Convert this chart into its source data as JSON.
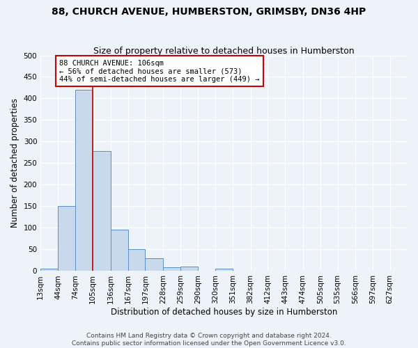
{
  "title": "88, CHURCH AVENUE, HUMBERSTON, GRIMSBY, DN36 4HP",
  "subtitle": "Size of property relative to detached houses in Humberston",
  "xlabel": "Distribution of detached houses by size in Humberston",
  "ylabel": "Number of detached properties",
  "bar_labels": [
    "13sqm",
    "44sqm",
    "74sqm",
    "105sqm",
    "136sqm",
    "167sqm",
    "197sqm",
    "228sqm",
    "259sqm",
    "290sqm",
    "320sqm",
    "351sqm",
    "382sqm",
    "412sqm",
    "443sqm",
    "474sqm",
    "505sqm",
    "535sqm",
    "566sqm",
    "597sqm",
    "627sqm"
  ],
  "bar_values": [
    5,
    150,
    420,
    278,
    96,
    50,
    30,
    8,
    10,
    1,
    5,
    1,
    1,
    0,
    0,
    0,
    0,
    1,
    0,
    0,
    0
  ],
  "bar_edges": [
    13,
    44,
    74,
    105,
    136,
    167,
    197,
    228,
    259,
    290,
    320,
    351,
    382,
    412,
    443,
    474,
    505,
    535,
    566,
    597,
    627,
    658
  ],
  "property_line_x": 105,
  "bar_color": "#c9d9ec",
  "bar_edge_color": "#5b8fc4",
  "line_color": "#cc0000",
  "annotation_text": "88 CHURCH AVENUE: 106sqm\n← 56% of detached houses are smaller (573)\n44% of semi-detached houses are larger (449) →",
  "annotation_box_color": "#ffffff",
  "annotation_box_edge_color": "#cc0000",
  "ylim": [
    0,
    500
  ],
  "yticks": [
    0,
    50,
    100,
    150,
    200,
    250,
    300,
    350,
    400,
    450,
    500
  ],
  "background_color": "#eef2f9",
  "grid_color": "#ffffff",
  "footer_text": "Contains HM Land Registry data © Crown copyright and database right 2024.\nContains public sector information licensed under the Open Government Licence v3.0.",
  "title_fontsize": 10,
  "subtitle_fontsize": 9,
  "axis_label_fontsize": 8.5,
  "tick_fontsize": 7.5,
  "annotation_fontsize": 7.5,
  "footer_fontsize": 6.5
}
